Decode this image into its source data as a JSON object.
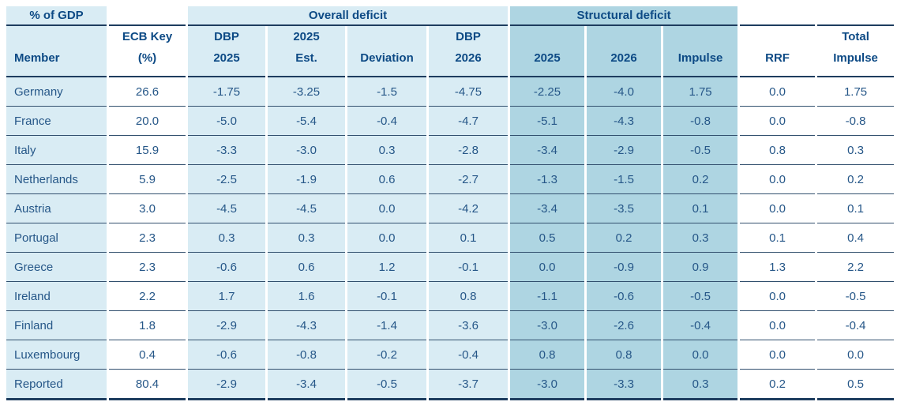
{
  "colors": {
    "cell_light_blue": "#d9ecf4",
    "cell_band_blue": "#aed5e2",
    "header_text": "#0d4a85",
    "value_text": "#265788",
    "rule_thick": "#1e3d5f",
    "rule_thin": "#32506e"
  },
  "chart_data": {
    "type": "table",
    "unit_label": "% of GDP",
    "groups": [
      {
        "label": "Overall deficit",
        "columns": [
          "DBP 2025",
          "2025 Est.",
          "Deviation",
          "DBP 2026"
        ]
      },
      {
        "label": "Structural deficit",
        "columns": [
          "2025",
          "2026",
          "Impulse"
        ]
      }
    ],
    "columns": [
      "Member",
      "ECB Key\n(%)",
      "DBP\n2025",
      "2025\nEst.",
      "Deviation",
      "DBP\n2026",
      "2025",
      "2026",
      "Impulse",
      "RRF",
      "Total\nImpulse"
    ],
    "rows": [
      {
        "member": "Germany",
        "values": [
          "26.6",
          "-1.75",
          "-3.25",
          "-1.5",
          "-4.75",
          "-2.25",
          "-4.0",
          "1.75",
          "0.0",
          "1.75"
        ]
      },
      {
        "member": "France",
        "values": [
          "20.0",
          "-5.0",
          "-5.4",
          "-0.4",
          "-4.7",
          "-5.1",
          "-4.3",
          "-0.8",
          "0.0",
          "-0.8"
        ]
      },
      {
        "member": "Italy",
        "values": [
          "15.9",
          "-3.3",
          "-3.0",
          "0.3",
          "-2.8",
          "-3.4",
          "-2.9",
          "-0.5",
          "0.8",
          "0.3"
        ]
      },
      {
        "member": "Netherlands",
        "values": [
          "5.9",
          "-2.5",
          "-1.9",
          "0.6",
          "-2.7",
          "-1.3",
          "-1.5",
          "0.2",
          "0.0",
          "0.2"
        ]
      },
      {
        "member": "Austria",
        "values": [
          "3.0",
          "-4.5",
          "-4.5",
          "0.0",
          "-4.2",
          "-3.4",
          "-3.5",
          "0.1",
          "0.0",
          "0.1"
        ]
      },
      {
        "member": "Portugal",
        "values": [
          "2.3",
          "0.3",
          "0.3",
          "0.0",
          "0.1",
          "0.5",
          "0.2",
          "0.3",
          "0.1",
          "0.4"
        ]
      },
      {
        "member": "Greece",
        "values": [
          "2.3",
          "-0.6",
          "0.6",
          "1.2",
          "-0.1",
          "0.0",
          "-0.9",
          "0.9",
          "1.3",
          "2.2"
        ]
      },
      {
        "member": "Ireland",
        "values": [
          "2.2",
          "1.7",
          "1.6",
          "-0.1",
          "0.8",
          "-1.1",
          "-0.6",
          "-0.5",
          "0.0",
          "-0.5"
        ]
      },
      {
        "member": "Finland",
        "values": [
          "1.8",
          "-2.9",
          "-4.3",
          "-1.4",
          "-3.6",
          "-3.0",
          "-2.6",
          "-0.4",
          "0.0",
          "-0.4"
        ]
      },
      {
        "member": "Luxembourg",
        "values": [
          "0.4",
          "-0.6",
          "-0.8",
          "-0.2",
          "-0.4",
          "0.8",
          "0.8",
          "0.0",
          "0.0",
          "0.0"
        ]
      },
      {
        "member": "Reported",
        "values": [
          "80.4",
          "-2.9",
          "-3.4",
          "-0.5",
          "-3.7",
          "-3.0",
          "-3.3",
          "0.3",
          "0.2",
          "0.5"
        ]
      }
    ]
  }
}
